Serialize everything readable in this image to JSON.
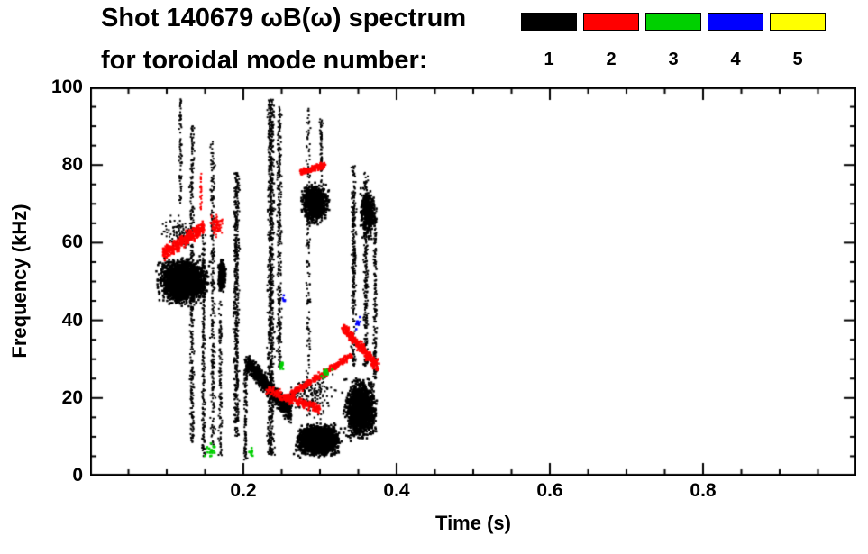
{
  "chart_data": {
    "type": "scatter",
    "title": "Shot 140679 ωB(ω) spectrum",
    "subtitle": "for toroidal mode number:",
    "xlabel": "Time (s)",
    "ylabel": "Frequency (kHz)",
    "xlim": [
      0,
      1
    ],
    "ylim": [
      0,
      100
    ],
    "xticks": [
      0.2,
      0.4,
      0.6,
      0.8
    ],
    "yticks": [
      0,
      20,
      40,
      60,
      80,
      100
    ],
    "x_minor_step": 0.05,
    "y_minor_step": 5,
    "grid": false,
    "legend_position": "top-right",
    "legend": [
      {
        "label": "1",
        "color": "#000000"
      },
      {
        "label": "2",
        "color": "#ff0000"
      },
      {
        "label": "3",
        "color": "#00d000"
      },
      {
        "label": "4",
        "color": "#0000ff"
      },
      {
        "label": "5",
        "color": "#ffff00"
      }
    ],
    "clusters": [
      {
        "mode": 1,
        "kind": "blob",
        "t": [
          0.085,
          0.158
        ],
        "f": [
          43,
          57
        ],
        "n": 2600,
        "size": 2.5
      },
      {
        "mode": 1,
        "kind": "blob",
        "t": [
          0.09,
          0.14
        ],
        "f": [
          57,
          68
        ],
        "n": 90,
        "size": 2
      },
      {
        "mode": 1,
        "kind": "vline",
        "t0": 0.118,
        "w": 0.003,
        "f": [
          70,
          97
        ],
        "n": 70
      },
      {
        "mode": 1,
        "kind": "vline",
        "t0": 0.133,
        "w": 0.004,
        "f": [
          8,
          90
        ],
        "n": 320
      },
      {
        "mode": 1,
        "kind": "vline",
        "t0": 0.148,
        "w": 0.003,
        "f": [
          5,
          62
        ],
        "n": 220
      },
      {
        "mode": 1,
        "kind": "vline",
        "t0": 0.16,
        "w": 0.004,
        "f": [
          8,
          86
        ],
        "n": 260
      },
      {
        "mode": 1,
        "kind": "blob",
        "t": [
          0.166,
          0.178
        ],
        "f": [
          47,
          56
        ],
        "n": 350,
        "size": 2.5
      },
      {
        "mode": 1,
        "kind": "vline",
        "t0": 0.17,
        "w": 0.003,
        "f": [
          5,
          45
        ],
        "n": 120
      },
      {
        "mode": 1,
        "kind": "vline",
        "t0": 0.191,
        "w": 0.005,
        "f": [
          10,
          78
        ],
        "n": 520
      },
      {
        "mode": 1,
        "kind": "vline",
        "t0": 0.203,
        "w": 0.003,
        "f": [
          4,
          30
        ],
        "n": 120
      },
      {
        "mode": 1,
        "kind": "seg",
        "p0": [
          0.205,
          29
        ],
        "p1": [
          0.262,
          16
        ],
        "spread": 3.5,
        "n": 700,
        "size": 2.5
      },
      {
        "mode": 1,
        "kind": "vline",
        "t0": 0.236,
        "w": 0.006,
        "f": [
          5,
          97
        ],
        "n": 850
      },
      {
        "mode": 1,
        "kind": "vline",
        "t0": 0.247,
        "w": 0.004,
        "f": [
          28,
          95
        ],
        "n": 300
      },
      {
        "mode": 1,
        "kind": "blob",
        "t": [
          0.272,
          0.315
        ],
        "f": [
          64,
          76
        ],
        "n": 950,
        "size": 2.5
      },
      {
        "mode": 1,
        "kind": "blob",
        "t": [
          0.263,
          0.332
        ],
        "f": [
          4,
          14
        ],
        "n": 2000,
        "size": 2.5
      },
      {
        "mode": 1,
        "kind": "blob",
        "t": [
          0.25,
          0.33
        ],
        "f": [
          14,
          28
        ],
        "n": 160,
        "size": 2
      },
      {
        "mode": 1,
        "kind": "vline",
        "t0": 0.285,
        "w": 0.004,
        "f": [
          15,
          95
        ],
        "n": 140
      },
      {
        "mode": 1,
        "kind": "vline",
        "t0": 0.302,
        "w": 0.003,
        "f": [
          75,
          92
        ],
        "n": 60
      },
      {
        "mode": 1,
        "kind": "blob",
        "t": [
          0.328,
          0.378
        ],
        "f": [
          8,
          26
        ],
        "n": 1700,
        "size": 2.5
      },
      {
        "mode": 1,
        "kind": "vline",
        "t0": 0.344,
        "w": 0.004,
        "f": [
          28,
          80
        ],
        "n": 260
      },
      {
        "mode": 1,
        "kind": "vline",
        "t0": 0.36,
        "w": 0.004,
        "f": [
          28,
          78
        ],
        "n": 260
      },
      {
        "mode": 1,
        "kind": "vline",
        "t0": 0.372,
        "w": 0.003,
        "f": [
          25,
          70
        ],
        "n": 180
      },
      {
        "mode": 1,
        "kind": "blob",
        "t": [
          0.35,
          0.375
        ],
        "f": [
          60,
          75
        ],
        "n": 420,
        "size": 2.5
      },
      {
        "mode": 2,
        "kind": "seg",
        "p0": [
          0.095,
          57
        ],
        "p1": [
          0.148,
          64
        ],
        "spread": 2.5,
        "n": 320,
        "size": 2.5
      },
      {
        "mode": 2,
        "kind": "blob",
        "t": [
          0.155,
          0.175
        ],
        "f": [
          61,
          68
        ],
        "n": 90,
        "size": 2
      },
      {
        "mode": 2,
        "kind": "vline",
        "t0": 0.145,
        "w": 0.002,
        "f": [
          68,
          78
        ],
        "n": 25
      },
      {
        "mode": 2,
        "kind": "seg",
        "p0": [
          0.275,
          78
        ],
        "p1": [
          0.306,
          80
        ],
        "spread": 1.2,
        "n": 130,
        "size": 2.5
      },
      {
        "mode": 2,
        "kind": "seg",
        "p0": [
          0.232,
          22
        ],
        "p1": [
          0.3,
          17
        ],
        "spread": 1.6,
        "n": 240,
        "size": 2.5
      },
      {
        "mode": 2,
        "kind": "seg",
        "p0": [
          0.262,
          21
        ],
        "p1": [
          0.342,
          31
        ],
        "spread": 1.4,
        "n": 230,
        "size": 2.5
      },
      {
        "mode": 2,
        "kind": "seg",
        "p0": [
          0.33,
          38
        ],
        "p1": [
          0.376,
          28
        ],
        "spread": 2.0,
        "n": 280,
        "size": 2.5
      },
      {
        "mode": 3,
        "kind": "blob",
        "t": [
          0.148,
          0.168
        ],
        "f": [
          4,
          9
        ],
        "n": 22,
        "size": 2.5
      },
      {
        "mode": 3,
        "kind": "blob",
        "t": [
          0.205,
          0.215
        ],
        "f": [
          4,
          8
        ],
        "n": 10,
        "size": 2.5
      },
      {
        "mode": 3,
        "kind": "blob",
        "t": [
          0.245,
          0.255
        ],
        "f": [
          26,
          30
        ],
        "n": 14,
        "size": 2.5
      },
      {
        "mode": 3,
        "kind": "blob",
        "t": [
          0.298,
          0.318
        ],
        "f": [
          24,
          29
        ],
        "n": 14,
        "size": 2.5
      },
      {
        "mode": 4,
        "kind": "blob",
        "t": [
          0.343,
          0.356
        ],
        "f": [
          37,
          42
        ],
        "n": 9,
        "size": 2.5
      },
      {
        "mode": 4,
        "kind": "blob",
        "t": [
          0.248,
          0.256
        ],
        "f": [
          43,
          47
        ],
        "n": 6,
        "size": 2.5
      }
    ]
  }
}
